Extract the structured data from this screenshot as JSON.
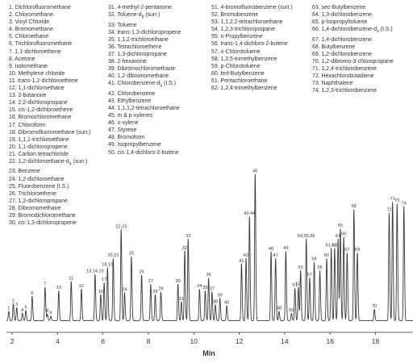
{
  "legend_columns": [
    [
      "1. Dichlorofluoromethane",
      "2. Chloromethane",
      "3. Vinyl Chloride",
      "4. Bromomethane",
      "5. Chloroethane",
      "6. Trichlorofluoromethane",
      "7. 1,1-dichloroethene",
      "8. Acetone",
      "9. Iodomethane",
      "10. Methylene chloride",
      "11. trans-1,2-dichloroethene",
      "12. 1,1-dichloroethane",
      "13. 2-butanone",
      "14. 2,2-dichloropropane",
      "15. cis-1,2-dichloroethene",
      "16. Bromochloromethane",
      "17. Chloroform",
      "18. Dibromofluoromethane (surr.)",
      "19. 1,1,1-trichloroethane",
      "20. 1,1-dichloropropene",
      "21. Carbon tetrachloride",
      "22. 1,2-dichloroethane-d4 (surr.)",
      "23. Benzene",
      "24. 1,2-dichloroethane",
      "25. Fluorobenzene (I.S.)",
      "26. Trichloroethene",
      "27. 1,2-dichloropropane",
      "28. Dibromomethane",
      "29. Bromodichloromethane",
      "30. cis-1,3-dichloropropene"
    ],
    [
      "31. 4-methyl-2-pentanone",
      "32. Toluene-d8 (surr.)",
      "33. Toluene",
      "34. trans-1,3-dichloropropene",
      "35. 1,1,2-trichloroethane",
      "36. Tetrachloroethene",
      "37. 1,3-dichloropropane",
      "38. 2-hexanone",
      "39. Dibromochloromethane",
      "40. 1,2-dibromomethane",
      "41. Chlorobenzene-d5 (I.S.)",
      "42. Chlorobenzene",
      "43. Ethylbenzene",
      "44. 1,1,1,2-tetrachloroethane",
      "45. m & p-xylenes",
      "46. o-xylene",
      "47. Styrene",
      "48. Bromoform",
      "49. Isopropylbenzene",
      "50. cis-1,4-dichloro-2-butene"
    ],
    [
      "51. 4-bromofluorobenzene (surr.)",
      "52. Bromobenzene",
      "53. 1,1,2,2-tetrachloroethane",
      "54. 1,2,3-trichloropropane",
      "55. n-Propylbenzene",
      "56. trans-1,4-dichloro-2-butene",
      "57. o-Chlorotoluene",
      "58. 1,3,5-trimethylbenzene",
      "59. p-Chlorotoluene",
      "60. tert-Butylbenzene",
      "61. Pentachloroethane",
      "62. 1,2,4-trimethylbenzene"
    ],
    [
      "63. sec-Butylbenzene",
      "64. 1,3-dichlorobenzene",
      "65. p-Isopropyltoluene",
      "66. 1,4-dichlorobenzene-d4 (I.S.)",
      "67. 1,4-dichlorobenzene",
      "68. Butylbenzene",
      "69. 1,2-dichlorobenzene",
      "70. 1,2-dibromo-3-chloropropane",
      "71. 1,2,4-trichlorobenzene",
      "72. Hexachlorobutadiene",
      "73. Naphthalene",
      "74. 1,2,3-trichlorobenzene"
    ]
  ],
  "chart_data": {
    "type": "line",
    "title": "",
    "xlabel": "Min",
    "ylabel": "",
    "xlim": [
      1.75,
      19.65
    ],
    "ylim": [
      0,
      100
    ],
    "xticks": [
      2,
      4,
      6,
      8,
      10,
      12,
      14,
      16,
      18
    ],
    "grid": false,
    "line_color": "#3a3a3a",
    "peaks": [
      {
        "label": "1",
        "x": 1.85,
        "h": 5
      },
      {
        "label": "2",
        "x": 2.05,
        "h": 9
      },
      {
        "label": "3",
        "x": 2.2,
        "h": 7
      },
      {
        "label": "4",
        "x": 2.45,
        "h": 4
      },
      {
        "label": "5",
        "x": 2.6,
        "h": 5.5
      },
      {
        "label": "6",
        "x": 2.88,
        "h": 13
      },
      {
        "label": "7",
        "x": 3.45,
        "h": 18
      },
      {
        "label": "8",
        "x": 3.55,
        "h": 3.5
      },
      {
        "label": "9",
        "x": 3.7,
        "h": 2.5
      },
      {
        "label": "10",
        "x": 4.05,
        "h": 16
      },
      {
        "label": "11",
        "x": 4.6,
        "h": 21
      },
      {
        "label": "12",
        "x": 5.05,
        "h": 17
      },
      {
        "label": "13,14,15",
        "x": 5.65,
        "h": 25
      },
      {
        "label": "16",
        "x": 5.9,
        "h": 14
      },
      {
        "label": "17",
        "x": 6.05,
        "h": 20.5
      },
      {
        "label": "18,19",
        "x": 6.2,
        "h": 28.5
      },
      {
        "label": "20,21",
        "x": 6.45,
        "h": 33.5
      },
      {
        "label": "22,23",
        "x": 6.8,
        "h": 49
      },
      {
        "label": "24",
        "x": 6.95,
        "h": 15
      },
      {
        "label": "25",
        "x": 7.25,
        "h": 34.5
      },
      {
        "label": "26",
        "x": 7.7,
        "h": 24.5
      },
      {
        "label": "27",
        "x": 8.1,
        "h": 19.5
      },
      {
        "label": "28",
        "x": 8.3,
        "h": 14
      },
      {
        "label": "29",
        "x": 8.55,
        "h": 15.5
      },
      {
        "label": "30",
        "x": 9.3,
        "h": 19.5
      },
      {
        "label": "31",
        "x": 9.45,
        "h": 10
      },
      {
        "label": "32",
        "x": 9.6,
        "h": 37.5
      },
      {
        "label": "33",
        "x": 9.75,
        "h": 44
      },
      {
        "label": "34",
        "x": 10.25,
        "h": 17
      },
      {
        "label": "35",
        "x": 10.5,
        "h": 16
      },
      {
        "label": "36",
        "x": 10.65,
        "h": 23
      },
      {
        "label": "37",
        "x": 10.8,
        "h": 15.5
      },
      {
        "label": "38",
        "x": 10.95,
        "h": 8.5
      },
      {
        "label": "39",
        "x": 11.15,
        "h": 12
      },
      {
        "label": "40",
        "x": 11.45,
        "h": 8
      },
      {
        "label": "41",
        "x": 12.1,
        "h": 30.5
      },
      {
        "label": "42",
        "x": 12.3,
        "h": 33.5
      },
      {
        "label": "43,44",
        "x": 12.45,
        "h": 56
      },
      {
        "label": "45",
        "x": 12.7,
        "h": 79
      },
      {
        "label": "46",
        "x": 13.4,
        "h": 37
      },
      {
        "label": "47",
        "x": 13.6,
        "h": 33.5
      },
      {
        "label": "48",
        "x": 13.75,
        "h": 5
      },
      {
        "label": "49",
        "x": 14.05,
        "h": 37.5
      },
      {
        "label": "50",
        "x": 14.3,
        "h": 4
      },
      {
        "label": "51",
        "x": 14.45,
        "h": 17.5
      },
      {
        "label": "52",
        "x": 14.6,
        "h": 18
      },
      {
        "label": "53",
        "x": 14.7,
        "h": 27
      },
      {
        "label": "54,55,56",
        "x": 14.95,
        "h": 44
      },
      {
        "label": "57",
        "x": 15.1,
        "h": 23
      },
      {
        "label": "58",
        "x": 15.3,
        "h": 31.5
      },
      {
        "label": "59",
        "x": 15.55,
        "h": 27
      },
      {
        "label": "60",
        "x": 15.85,
        "h": 33.5
      },
      {
        "label": "61,62",
        "x": 16.05,
        "h": 39
      },
      {
        "label": "63",
        "x": 16.2,
        "h": 39
      },
      {
        "label": "64",
        "x": 16.35,
        "h": 44
      },
      {
        "label": "65",
        "x": 16.45,
        "h": 49.5
      },
      {
        "label": "66",
        "x": 16.6,
        "h": 45
      },
      {
        "label": "67",
        "x": 16.75,
        "h": 36.5
      },
      {
        "label": "68",
        "x": 17.05,
        "h": 60
      },
      {
        "label": "69",
        "x": 17.2,
        "h": 36.5
      },
      {
        "label": "70",
        "x": 17.95,
        "h": 6
      },
      {
        "label": "71",
        "x": 18.75,
        "h": 64
      },
      {
        "label": "72",
        "x": 18.6,
        "h": 58
      },
      {
        "label": "73",
        "x": 18.95,
        "h": 63
      },
      {
        "label": "74",
        "x": 19.25,
        "h": 61.5
      }
    ]
  }
}
